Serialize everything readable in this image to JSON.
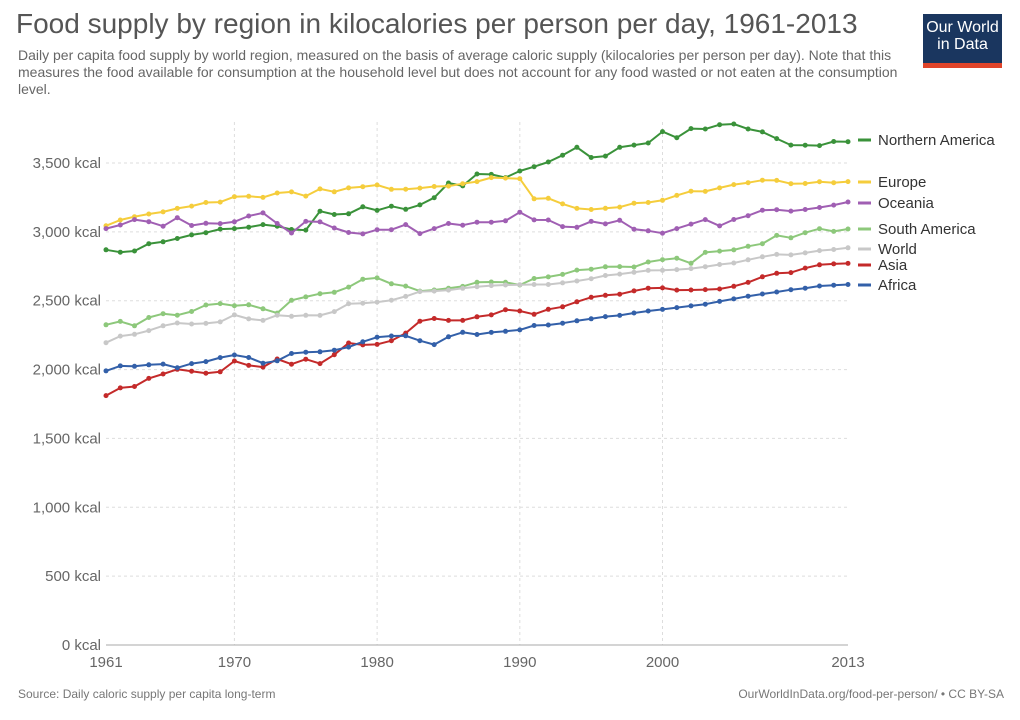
{
  "header": {
    "title": "Food supply by region in kilocalories per person per day, 1961-2013",
    "subtitle": "Daily per capita food supply by world region, measured on the basis of average caloric supply (kilocalories per person per day). Note that this measures the food available for consumption at the household level but does not account for any food wasted or not eaten at the consumption level.",
    "logo_line1": "Our World",
    "logo_line2": "in Data"
  },
  "footer": {
    "source": "Source: Daily caloric supply per capita long-term",
    "credit": "OurWorldInData.org/food-per-person/ • CC BY-SA"
  },
  "chart_data": {
    "type": "line",
    "title": "Food supply by region in kilocalories per person per day, 1961-2013",
    "xlabel": "",
    "ylabel": "",
    "xlim": [
      1961,
      2013
    ],
    "ylim": [
      0,
      3800
    ],
    "grid": true,
    "legend_position": "right",
    "x_ticks": [
      "1961",
      "1970",
      "1980",
      "1990",
      "2000",
      "2013"
    ],
    "y_ticks": [
      "0 kcal",
      "500 kcal",
      "1,000 kcal",
      "1,500 kcal",
      "2,000 kcal",
      "2,500 kcal",
      "3,000 kcal",
      "3,500 kcal"
    ],
    "x": [
      1961,
      1962,
      1963,
      1964,
      1965,
      1966,
      1967,
      1968,
      1969,
      1970,
      1971,
      1972,
      1973,
      1974,
      1975,
      1976,
      1977,
      1978,
      1979,
      1980,
      1981,
      1982,
      1983,
      1984,
      1985,
      1986,
      1987,
      1988,
      1989,
      1990,
      1991,
      1992,
      1993,
      1994,
      1995,
      1996,
      1997,
      1998,
      1999,
      2000,
      2001,
      2002,
      2003,
      2004,
      2005,
      2006,
      2007,
      2008,
      2009,
      2010,
      2011,
      2012,
      2013
    ],
    "series": [
      {
        "name": "Northern America",
        "color": "#3a923a",
        "values": [
          2870,
          2852,
          2861,
          2914,
          2928,
          2952,
          2978,
          2994,
          3020,
          3024,
          3034,
          3053,
          3041,
          3017,
          3013,
          3150,
          3126,
          3131,
          3182,
          3156,
          3186,
          3164,
          3196,
          3248,
          3355,
          3334,
          3420,
          3417,
          3394,
          3442,
          3473,
          3507,
          3557,
          3614,
          3540,
          3550,
          3614,
          3630,
          3645,
          3728,
          3684,
          3750,
          3747,
          3778,
          3783,
          3747,
          3726,
          3677,
          3630,
          3629,
          3626,
          3656,
          3655
        ]
      },
      {
        "name": "Europe",
        "color": "#f5cd3c",
        "values": [
          3044,
          3086,
          3110,
          3130,
          3145,
          3170,
          3187,
          3213,
          3216,
          3255,
          3258,
          3250,
          3282,
          3290,
          3260,
          3312,
          3291,
          3319,
          3328,
          3340,
          3309,
          3310,
          3318,
          3329,
          3332,
          3350,
          3365,
          3394,
          3390,
          3386,
          3240,
          3244,
          3203,
          3170,
          3162,
          3171,
          3180,
          3208,
          3213,
          3229,
          3265,
          3295,
          3294,
          3319,
          3343,
          3357,
          3375,
          3374,
          3350,
          3351,
          3364,
          3357,
          3365
        ]
      },
      {
        "name": "Oceania",
        "color": "#a05fb3",
        "values": [
          3024,
          3050,
          3089,
          3074,
          3041,
          3103,
          3046,
          3062,
          3060,
          3073,
          3115,
          3138,
          3061,
          2992,
          3076,
          3072,
          3028,
          2995,
          2985,
          3016,
          3016,
          3053,
          2987,
          3024,
          3061,
          3048,
          3070,
          3070,
          3080,
          3143,
          3087,
          3086,
          3038,
          3033,
          3076,
          3058,
          3084,
          3019,
          3008,
          2990,
          3024,
          3056,
          3089,
          3043,
          3090,
          3117,
          3157,
          3161,
          3151,
          3162,
          3177,
          3194,
          3217
        ]
      },
      {
        "name": "South America",
        "color": "#8dc87b",
        "values": [
          2325,
          2350,
          2318,
          2378,
          2406,
          2395,
          2422,
          2469,
          2479,
          2464,
          2470,
          2441,
          2410,
          2503,
          2528,
          2551,
          2561,
          2599,
          2656,
          2666,
          2623,
          2606,
          2570,
          2578,
          2590,
          2604,
          2634,
          2636,
          2634,
          2614,
          2661,
          2673,
          2691,
          2722,
          2729,
          2746,
          2748,
          2745,
          2781,
          2798,
          2809,
          2772,
          2851,
          2860,
          2869,
          2895,
          2914,
          2974,
          2957,
          2994,
          3023,
          3003,
          3021
        ]
      },
      {
        "name": "World",
        "color": "#c8c8c8",
        "values": [
          2195,
          2243,
          2256,
          2283,
          2318,
          2338,
          2331,
          2335,
          2346,
          2397,
          2368,
          2357,
          2395,
          2387,
          2394,
          2393,
          2421,
          2478,
          2482,
          2490,
          2504,
          2531,
          2566,
          2570,
          2577,
          2590,
          2602,
          2610,
          2614,
          2616,
          2618,
          2618,
          2629,
          2643,
          2660,
          2683,
          2693,
          2706,
          2720,
          2721,
          2726,
          2733,
          2747,
          2763,
          2774,
          2797,
          2819,
          2836,
          2833,
          2847,
          2864,
          2872,
          2884
        ]
      },
      {
        "name": "Asia",
        "color": "#c42a2a",
        "values": [
          1811,
          1867,
          1877,
          1936,
          1968,
          2002,
          1988,
          1974,
          1984,
          2062,
          2030,
          2018,
          2077,
          2039,
          2075,
          2043,
          2108,
          2193,
          2179,
          2183,
          2210,
          2265,
          2351,
          2371,
          2357,
          2357,
          2383,
          2397,
          2435,
          2425,
          2401,
          2438,
          2456,
          2492,
          2525,
          2539,
          2547,
          2571,
          2591,
          2593,
          2577,
          2578,
          2581,
          2585,
          2605,
          2633,
          2674,
          2699,
          2704,
          2737,
          2761,
          2767,
          2771
        ]
      },
      {
        "name": "Africa",
        "color": "#3360a9",
        "values": [
          1990,
          2027,
          2024,
          2035,
          2040,
          2013,
          2043,
          2058,
          2087,
          2106,
          2088,
          2046,
          2064,
          2117,
          2126,
          2129,
          2141,
          2163,
          2202,
          2235,
          2244,
          2245,
          2210,
          2181,
          2238,
          2271,
          2255,
          2270,
          2278,
          2288,
          2320,
          2324,
          2337,
          2354,
          2369,
          2385,
          2393,
          2411,
          2425,
          2437,
          2450,
          2462,
          2475,
          2495,
          2513,
          2533,
          2549,
          2563,
          2580,
          2591,
          2607,
          2613,
          2618
        ]
      }
    ]
  }
}
